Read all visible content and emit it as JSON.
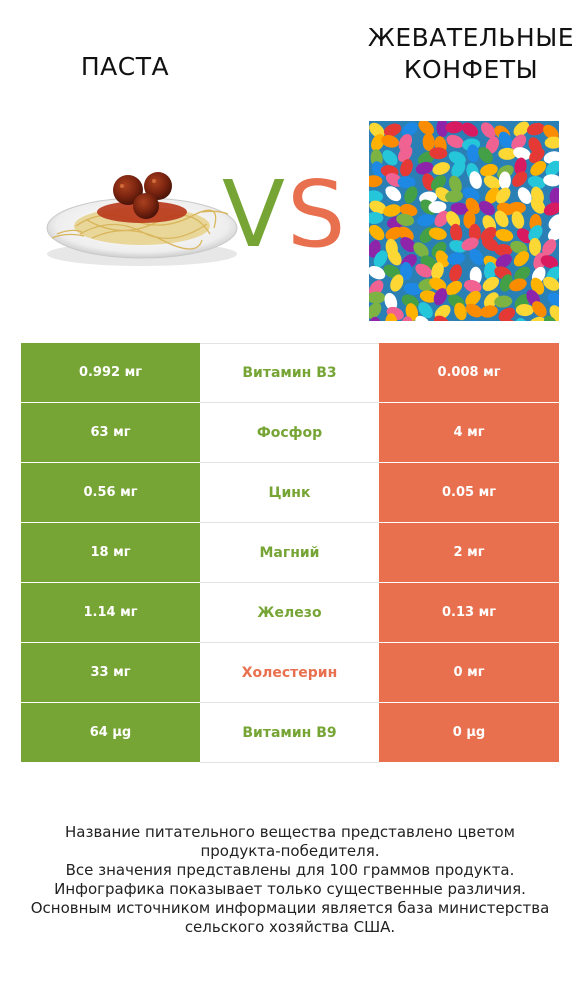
{
  "header": {
    "left_title": "ПАСТА",
    "right_title_line1": "ЖЕВАТЕЛЬНЫЕ",
    "right_title_line2": "КОНФЕТЫ",
    "vs_v": "V",
    "vs_s": "S"
  },
  "colors": {
    "winner_left": "#76a535",
    "winner_right": "#e8704f"
  },
  "rows": [
    {
      "left": "0.992 мг",
      "name": "Витамин B3",
      "right": "0.008 мг",
      "winner": "left"
    },
    {
      "left": "63 мг",
      "name": "Фосфор",
      "right": "4 мг",
      "winner": "left"
    },
    {
      "left": "0.56 мг",
      "name": "Цинк",
      "right": "0.05 мг",
      "winner": "left"
    },
    {
      "left": "18 мг",
      "name": "Магний",
      "right": "2 мг",
      "winner": "left"
    },
    {
      "left": "1.14 мг",
      "name": "Железо",
      "right": "0.13 мг",
      "winner": "left"
    },
    {
      "left": "33 мг",
      "name": "Холестерин",
      "right": "0 мг",
      "winner": "right"
    },
    {
      "left": "64 µg",
      "name": "Витамин B9",
      "right": "0 µg",
      "winner": "left"
    }
  ],
  "footnote": {
    "line1": "Название питательного вещества представлено цветом",
    "line2": "продукта-победителя.",
    "line3": "Все значения представлены для 100 граммов продукта.",
    "line4": "Инфографика показывает только существенные различия.",
    "line5": "Основным источником информации является база министерства",
    "line6": "сельского хозяйства США."
  }
}
